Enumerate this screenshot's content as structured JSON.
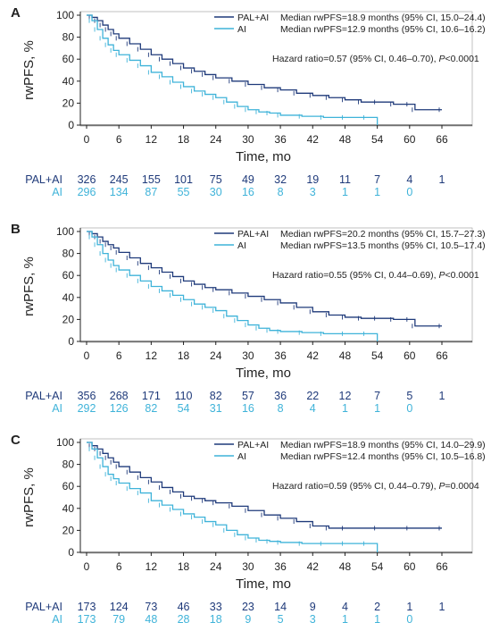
{
  "colors": {
    "pal_ai": "#1f3a7a",
    "ai": "#3fb3d9",
    "axis": "#222222"
  },
  "chart_data": [
    {
      "type": "line",
      "panel_label": "A",
      "xlabel": "Time, mo",
      "ylabel": "rwPFS, %",
      "xlim": [
        0,
        66
      ],
      "ylim": [
        0,
        100
      ],
      "xticks": [
        0,
        6,
        12,
        18,
        24,
        30,
        36,
        42,
        48,
        54,
        60,
        66
      ],
      "yticks": [
        0,
        20,
        40,
        60,
        80,
        100
      ],
      "grid": false,
      "legend_position": "top-right",
      "hazard_ratio": {
        "pre": "Hazard ratio=0.57 (95% CI, 0.46–0.70), ",
        "p_symbol": "P",
        "post": "<0.0001"
      },
      "series": [
        {
          "name": "PAL+AI",
          "median_text": "Median rwPFS=18.9 months (95% CI, 15.0–24.4)",
          "x": [
            0,
            1,
            2,
            3,
            4,
            5,
            6,
            8,
            10,
            12,
            14,
            16,
            18,
            20,
            22,
            24,
            27,
            30,
            33,
            36,
            39,
            42,
            45,
            48,
            51,
            54,
            57,
            60,
            61,
            66
          ],
          "y": [
            100,
            98,
            95,
            91,
            87,
            83,
            79,
            74,
            69,
            64,
            60,
            56,
            52,
            49,
            46,
            43,
            40,
            37,
            34,
            32,
            29,
            27,
            25,
            23,
            21,
            21,
            19,
            19,
            14,
            14
          ],
          "at_risk": [
            326,
            245,
            155,
            101,
            75,
            49,
            32,
            19,
            11,
            7,
            4,
            1
          ]
        },
        {
          "name": "AI",
          "median_text": "Median rwPFS=12.9 months (95% CI, 10.6–16.2)",
          "x": [
            0,
            1,
            2,
            3,
            4,
            5,
            6,
            8,
            10,
            12,
            14,
            16,
            18,
            20,
            22,
            24,
            26,
            28,
            30,
            32,
            34,
            36,
            40,
            44,
            48,
            52,
            54
          ],
          "y": [
            100,
            95,
            87,
            79,
            73,
            68,
            64,
            59,
            54,
            48,
            44,
            39,
            35,
            31,
            28,
            25,
            21,
            17,
            14,
            12,
            11,
            9,
            8,
            7,
            7,
            7,
            0
          ],
          "at_risk": [
            296,
            134,
            87,
            55,
            30,
            16,
            8,
            3,
            1,
            1,
            0
          ]
        }
      ]
    },
    {
      "type": "line",
      "panel_label": "B",
      "xlabel": "Time, mo",
      "ylabel": "rwPFS, %",
      "xlim": [
        0,
        66
      ],
      "ylim": [
        0,
        100
      ],
      "xticks": [
        0,
        6,
        12,
        18,
        24,
        30,
        36,
        42,
        48,
        54,
        60,
        66
      ],
      "yticks": [
        0,
        20,
        40,
        60,
        80,
        100
      ],
      "grid": false,
      "legend_position": "top-right",
      "hazard_ratio": {
        "pre": "Hazard ratio=0.55 (95% CI, 0.44–0.69), ",
        "p_symbol": "P",
        "post": "<0.0001"
      },
      "series": [
        {
          "name": "PAL+AI",
          "median_text": "Median rwPFS=20.2 months (95% CI, 15.7–27.3)",
          "x": [
            0,
            1,
            2,
            3,
            4,
            5,
            6,
            8,
            10,
            12,
            14,
            16,
            18,
            20,
            22,
            24,
            27,
            30,
            33,
            36,
            39,
            42,
            45,
            48,
            51,
            54,
            57,
            60,
            61,
            66
          ],
          "y": [
            100,
            98,
            95,
            91,
            88,
            85,
            81,
            76,
            71,
            67,
            63,
            59,
            55,
            52,
            49,
            47,
            44,
            41,
            38,
            35,
            31,
            27,
            24,
            22,
            21,
            21,
            20,
            20,
            14,
            14
          ],
          "at_risk": [
            356,
            268,
            171,
            110,
            82,
            57,
            36,
            22,
            12,
            7,
            5,
            1
          ]
        },
        {
          "name": "AI",
          "median_text": "Median rwPFS=13.5 months (95% CI, 10.5–17.4)",
          "x": [
            0,
            1,
            2,
            3,
            4,
            5,
            6,
            8,
            10,
            12,
            14,
            16,
            18,
            20,
            22,
            24,
            26,
            28,
            30,
            32,
            34,
            36,
            40,
            44,
            48,
            52,
            54
          ],
          "y": [
            100,
            95,
            88,
            80,
            74,
            69,
            65,
            60,
            55,
            50,
            46,
            42,
            38,
            34,
            31,
            28,
            23,
            19,
            15,
            12,
            10,
            9,
            8,
            7,
            7,
            7,
            0
          ],
          "at_risk": [
            292,
            126,
            82,
            54,
            31,
            16,
            8,
            4,
            1,
            1,
            0
          ]
        }
      ]
    },
    {
      "type": "line",
      "panel_label": "C",
      "xlabel": "Time, mo",
      "ylabel": "rwPFS, %",
      "xlim": [
        0,
        66
      ],
      "ylim": [
        0,
        100
      ],
      "xticks": [
        0,
        6,
        12,
        18,
        24,
        30,
        36,
        42,
        48,
        54,
        60,
        66
      ],
      "yticks": [
        0,
        20,
        40,
        60,
        80,
        100
      ],
      "grid": false,
      "legend_position": "top-right",
      "hazard_ratio": {
        "pre": "Hazard ratio=0.59 (95% CI, 0.44–0.79), ",
        "p_symbol": "P",
        "post": "=0.0004"
      },
      "series": [
        {
          "name": "PAL+AI",
          "median_text": "Median rwPFS=18.9 months (95% CI, 14.0–29.9)",
          "x": [
            0,
            1,
            2,
            3,
            4,
            5,
            6,
            8,
            10,
            12,
            14,
            16,
            18,
            20,
            22,
            24,
            27,
            30,
            33,
            36,
            39,
            42,
            45,
            48,
            54,
            60,
            66
          ],
          "y": [
            100,
            97,
            94,
            90,
            86,
            82,
            78,
            73,
            68,
            64,
            59,
            55,
            51,
            49,
            47,
            45,
            42,
            38,
            34,
            31,
            28,
            24,
            22,
            22,
            22,
            22,
            22
          ],
          "at_risk": [
            173,
            124,
            73,
            46,
            33,
            23,
            14,
            9,
            4,
            2,
            1,
            1
          ]
        },
        {
          "name": "AI",
          "median_text": "Median rwPFS=12.4 months (95% CI, 10.5–16.8)",
          "x": [
            0,
            1,
            2,
            3,
            4,
            5,
            6,
            8,
            10,
            12,
            14,
            16,
            18,
            20,
            22,
            24,
            26,
            28,
            30,
            32,
            34,
            36,
            40,
            44,
            48,
            52,
            54
          ],
          "y": [
            100,
            94,
            86,
            78,
            71,
            67,
            63,
            58,
            54,
            47,
            43,
            39,
            35,
            32,
            28,
            25,
            20,
            16,
            13,
            11,
            10,
            9,
            8,
            8,
            8,
            8,
            0
          ],
          "at_risk": [
            173,
            79,
            48,
            28,
            18,
            9,
            5,
            3,
            1,
            1,
            0
          ]
        }
      ]
    }
  ]
}
